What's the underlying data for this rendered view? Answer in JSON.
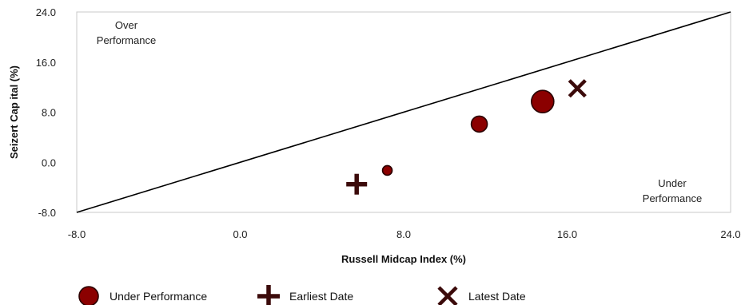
{
  "colors": {
    "marker_fill": "#8b0000",
    "marker_stroke": "#2a0000",
    "cross_stroke": "#3b0a0a",
    "line": "#000000",
    "frame": "#c8c8c8"
  },
  "chart_data": {
    "type": "scatter",
    "xlabel": "Russell Midcap Index (%)",
    "ylabel": "Seizert Cap ital  (%)",
    "xlim": [
      -8.0,
      24.0
    ],
    "ylim": [
      -8.0,
      24.0
    ],
    "x_ticks": [
      "-8.0",
      "0.0",
      "8.0",
      "16.0",
      "24.0"
    ],
    "y_ticks": [
      "24.0",
      "16.0",
      "8.0",
      "0.0",
      "-8.0"
    ],
    "x_tick_values": [
      -8,
      0,
      8,
      16,
      24
    ],
    "y_tick_values": [
      24,
      16,
      8,
      0,
      -8
    ],
    "reference_line": {
      "from": [
        -8,
        -8
      ],
      "to": [
        24,
        24
      ]
    },
    "annotations": {
      "over": [
        "Over",
        "Performance"
      ],
      "under": [
        "Under",
        "Performance"
      ]
    },
    "series": [
      {
        "name": "Under Performance",
        "marker": "circle",
        "points": [
          {
            "x": 7.2,
            "y": -1.3,
            "size": "small"
          },
          {
            "x": 11.7,
            "y": 6.1,
            "size": "medium"
          },
          {
            "x": 14.8,
            "y": 9.7,
            "size": "large"
          }
        ]
      },
      {
        "name": "Earliest Date",
        "marker": "plus",
        "points": [
          {
            "x": 5.7,
            "y": -3.5
          }
        ]
      },
      {
        "name": "Latest Date",
        "marker": "x",
        "points": [
          {
            "x": 16.5,
            "y": 11.8
          }
        ]
      }
    ],
    "legend": {
      "placement": "bottom",
      "items": [
        "Under Performance",
        "Earliest Date",
        "Latest Date"
      ]
    },
    "grid": false
  }
}
